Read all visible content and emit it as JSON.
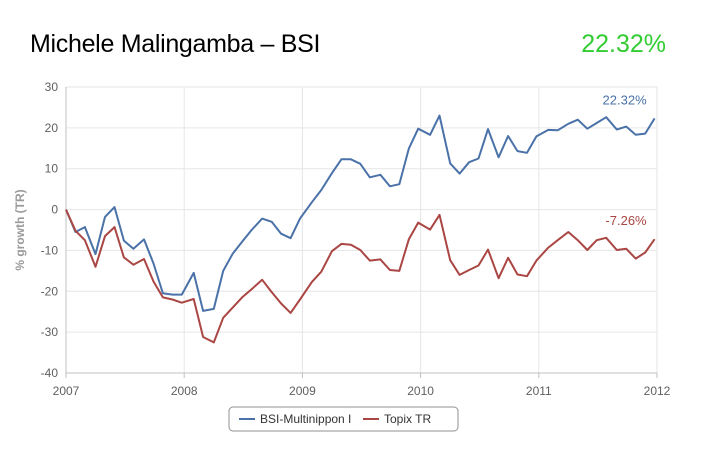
{
  "header": {
    "title": "Michele Malingamba – BSI",
    "value": "22.32%",
    "value_color": "#33cc33"
  },
  "chart_data": {
    "type": "line",
    "title": "",
    "xlabel": "",
    "ylabel": "% growth (TR)",
    "xlim": [
      2007,
      2012
    ],
    "ylim": [
      -40,
      30
    ],
    "x_ticks": [
      "2007",
      "2008",
      "2009",
      "2010",
      "2011",
      "2012"
    ],
    "y_ticks": [
      "30",
      "20",
      "10",
      "0",
      "-10",
      "-20",
      "-30",
      "-40"
    ],
    "grid": true,
    "legend_position": "bottom",
    "series": [
      {
        "name": "BSI-Multinippon I",
        "color": "#4a72a8",
        "end_label": "22.32%",
        "points": [
          [
            2007.0,
            0.0
          ],
          [
            2007.08,
            -5.5
          ],
          [
            2007.16,
            -4.3
          ],
          [
            2007.25,
            -10.9
          ],
          [
            2007.33,
            -1.8
          ],
          [
            2007.41,
            0.6
          ],
          [
            2007.49,
            -7.6
          ],
          [
            2007.57,
            -9.6
          ],
          [
            2007.66,
            -7.3
          ],
          [
            2007.74,
            -13.2
          ],
          [
            2007.82,
            -20.5
          ],
          [
            2007.9,
            -20.8
          ],
          [
            2007.98,
            -20.8
          ],
          [
            2008.08,
            -15.5
          ],
          [
            2008.16,
            -24.8
          ],
          [
            2008.25,
            -24.3
          ],
          [
            2008.33,
            -15.0
          ],
          [
            2008.41,
            -10.8
          ],
          [
            2008.49,
            -7.9
          ],
          [
            2008.57,
            -5.0
          ],
          [
            2008.66,
            -2.2
          ],
          [
            2008.74,
            -3.0
          ],
          [
            2008.82,
            -5.9
          ],
          [
            2008.9,
            -7.0
          ],
          [
            2008.98,
            -2.2
          ],
          [
            2009.08,
            1.8
          ],
          [
            2009.16,
            4.8
          ],
          [
            2009.25,
            8.9
          ],
          [
            2009.33,
            12.3
          ],
          [
            2009.41,
            12.3
          ],
          [
            2009.49,
            11.2
          ],
          [
            2009.57,
            7.9
          ],
          [
            2009.66,
            8.5
          ],
          [
            2009.74,
            5.7
          ],
          [
            2009.82,
            6.2
          ],
          [
            2009.9,
            14.9
          ],
          [
            2009.98,
            19.8
          ],
          [
            2010.08,
            18.3
          ],
          [
            2010.16,
            23.0
          ],
          [
            2010.25,
            11.3
          ],
          [
            2010.33,
            8.8
          ],
          [
            2010.41,
            11.6
          ],
          [
            2010.49,
            12.5
          ],
          [
            2010.57,
            19.7
          ],
          [
            2010.66,
            12.8
          ],
          [
            2010.74,
            18.0
          ],
          [
            2010.82,
            14.3
          ],
          [
            2010.9,
            13.9
          ],
          [
            2010.98,
            17.9
          ],
          [
            2011.08,
            19.5
          ],
          [
            2011.16,
            19.4
          ],
          [
            2011.25,
            21.0
          ],
          [
            2011.33,
            22.0
          ],
          [
            2011.41,
            19.8
          ],
          [
            2011.49,
            21.2
          ],
          [
            2011.57,
            22.6
          ],
          [
            2011.66,
            19.6
          ],
          [
            2011.74,
            20.3
          ],
          [
            2011.82,
            18.3
          ],
          [
            2011.9,
            18.6
          ],
          [
            2011.98,
            22.32
          ]
        ]
      },
      {
        "name": "Topix TR",
        "color": "#aa4643",
        "end_label": "-7.26%",
        "points": [
          [
            2007.0,
            0.0
          ],
          [
            2007.08,
            -5.2
          ],
          [
            2007.16,
            -7.5
          ],
          [
            2007.25,
            -14.0
          ],
          [
            2007.33,
            -6.5
          ],
          [
            2007.41,
            -4.3
          ],
          [
            2007.49,
            -11.7
          ],
          [
            2007.57,
            -13.5
          ],
          [
            2007.66,
            -12.1
          ],
          [
            2007.74,
            -17.6
          ],
          [
            2007.82,
            -21.5
          ],
          [
            2007.9,
            -22.0
          ],
          [
            2007.98,
            -22.8
          ],
          [
            2008.08,
            -21.9
          ],
          [
            2008.16,
            -31.2
          ],
          [
            2008.25,
            -32.5
          ],
          [
            2008.33,
            -26.5
          ],
          [
            2008.41,
            -24.0
          ],
          [
            2008.49,
            -21.5
          ],
          [
            2008.57,
            -19.5
          ],
          [
            2008.66,
            -17.2
          ],
          [
            2008.74,
            -20.2
          ],
          [
            2008.82,
            -23.0
          ],
          [
            2008.9,
            -25.3
          ],
          [
            2008.98,
            -22.0
          ],
          [
            2009.08,
            -17.7
          ],
          [
            2009.16,
            -15.2
          ],
          [
            2009.25,
            -10.2
          ],
          [
            2009.33,
            -8.4
          ],
          [
            2009.41,
            -8.6
          ],
          [
            2009.49,
            -9.9
          ],
          [
            2009.57,
            -12.5
          ],
          [
            2009.66,
            -12.2
          ],
          [
            2009.74,
            -14.8
          ],
          [
            2009.82,
            -15.0
          ],
          [
            2009.9,
            -7.3
          ],
          [
            2009.98,
            -3.2
          ],
          [
            2010.08,
            -4.9
          ],
          [
            2010.16,
            -1.3
          ],
          [
            2010.25,
            -12.4
          ],
          [
            2010.33,
            -16.0
          ],
          [
            2010.41,
            -14.8
          ],
          [
            2010.49,
            -13.7
          ],
          [
            2010.57,
            -9.8
          ],
          [
            2010.66,
            -16.8
          ],
          [
            2010.74,
            -11.8
          ],
          [
            2010.82,
            -15.9
          ],
          [
            2010.9,
            -16.3
          ],
          [
            2010.98,
            -12.5
          ],
          [
            2011.08,
            -9.3
          ],
          [
            2011.16,
            -7.5
          ],
          [
            2011.25,
            -5.5
          ],
          [
            2011.33,
            -7.5
          ],
          [
            2011.41,
            -9.9
          ],
          [
            2011.49,
            -7.5
          ],
          [
            2011.57,
            -6.9
          ],
          [
            2011.66,
            -9.9
          ],
          [
            2011.74,
            -9.6
          ],
          [
            2011.82,
            -12.0
          ],
          [
            2011.9,
            -10.5
          ],
          [
            2011.98,
            -7.26
          ]
        ]
      }
    ]
  }
}
